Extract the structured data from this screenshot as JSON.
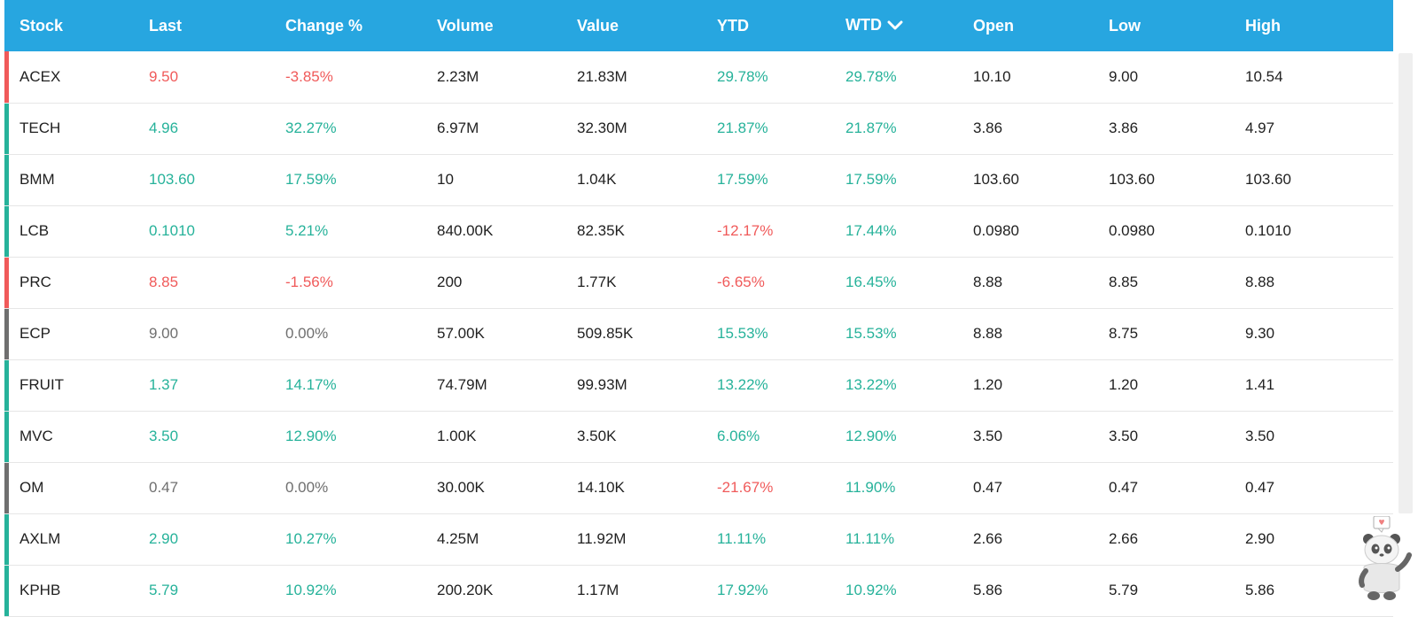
{
  "colors": {
    "header": "#27a6e0",
    "up": "#26b29a",
    "down": "#f05a5a",
    "flat": "#6f6f6f"
  },
  "columns": [
    "Stock",
    "Last",
    "Change %",
    "Volume",
    "Value",
    "YTD",
    "WTD",
    "Open",
    "Low",
    "High"
  ],
  "sort_icon": "chevron-down-icon",
  "rows": [
    {
      "stock": "ACEX",
      "last": "9.50",
      "change": "-3.85%",
      "volume": "2.23M",
      "value": "21.83M",
      "ytd": "29.78%",
      "wtd": "29.78%",
      "open": "10.10",
      "low": "9.00",
      "high": "10.54",
      "trend": "down",
      "ytd_trend": "up",
      "wtd_trend": "up"
    },
    {
      "stock": "TECH",
      "last": "4.96",
      "change": "32.27%",
      "volume": "6.97M",
      "value": "32.30M",
      "ytd": "21.87%",
      "wtd": "21.87%",
      "open": "3.86",
      "low": "3.86",
      "high": "4.97",
      "trend": "up",
      "ytd_trend": "up",
      "wtd_trend": "up"
    },
    {
      "stock": "BMM",
      "last": "103.60",
      "change": "17.59%",
      "volume": "10",
      "value": "1.04K",
      "ytd": "17.59%",
      "wtd": "17.59%",
      "open": "103.60",
      "low": "103.60",
      "high": "103.60",
      "trend": "up",
      "ytd_trend": "up",
      "wtd_trend": "up"
    },
    {
      "stock": "LCB",
      "last": "0.1010",
      "change": "5.21%",
      "volume": "840.00K",
      "value": "82.35K",
      "ytd": "-12.17%",
      "wtd": "17.44%",
      "open": "0.0980",
      "low": "0.0980",
      "high": "0.1010",
      "trend": "up",
      "ytd_trend": "down",
      "wtd_trend": "up"
    },
    {
      "stock": "PRC",
      "last": "8.85",
      "change": "-1.56%",
      "volume": "200",
      "value": "1.77K",
      "ytd": "-6.65%",
      "wtd": "16.45%",
      "open": "8.88",
      "low": "8.85",
      "high": "8.88",
      "trend": "down",
      "ytd_trend": "down",
      "wtd_trend": "up"
    },
    {
      "stock": "ECP",
      "last": "9.00",
      "change": "0.00%",
      "volume": "57.00K",
      "value": "509.85K",
      "ytd": "15.53%",
      "wtd": "15.53%",
      "open": "8.88",
      "low": "8.75",
      "high": "9.30",
      "trend": "flat",
      "ytd_trend": "up",
      "wtd_trend": "up"
    },
    {
      "stock": "FRUIT",
      "last": "1.37",
      "change": "14.17%",
      "volume": "74.79M",
      "value": "99.93M",
      "ytd": "13.22%",
      "wtd": "13.22%",
      "open": "1.20",
      "low": "1.20",
      "high": "1.41",
      "trend": "up",
      "ytd_trend": "up",
      "wtd_trend": "up"
    },
    {
      "stock": "MVC",
      "last": "3.50",
      "change": "12.90%",
      "volume": "1.00K",
      "value": "3.50K",
      "ytd": "6.06%",
      "wtd": "12.90%",
      "open": "3.50",
      "low": "3.50",
      "high": "3.50",
      "trend": "up",
      "ytd_trend": "up",
      "wtd_trend": "up"
    },
    {
      "stock": "OM",
      "last": "0.47",
      "change": "0.00%",
      "volume": "30.00K",
      "value": "14.10K",
      "ytd": "-21.67%",
      "wtd": "11.90%",
      "open": "0.47",
      "low": "0.47",
      "high": "0.47",
      "trend": "flat",
      "ytd_trend": "down",
      "wtd_trend": "up"
    },
    {
      "stock": "AXLM",
      "last": "2.90",
      "change": "10.27%",
      "volume": "4.25M",
      "value": "11.92M",
      "ytd": "11.11%",
      "wtd": "11.11%",
      "open": "2.66",
      "low": "2.66",
      "high": "2.90",
      "trend": "up",
      "ytd_trend": "up",
      "wtd_trend": "up"
    },
    {
      "stock": "KPHB",
      "last": "5.79",
      "change": "10.92%",
      "volume": "200.20K",
      "value": "1.17M",
      "ytd": "17.92%",
      "wtd": "10.92%",
      "open": "5.86",
      "low": "5.79",
      "high": "5.86",
      "trend": "up",
      "ytd_trend": "up",
      "wtd_trend": "up"
    }
  ],
  "mascot_icon": "panda-mascot-icon"
}
